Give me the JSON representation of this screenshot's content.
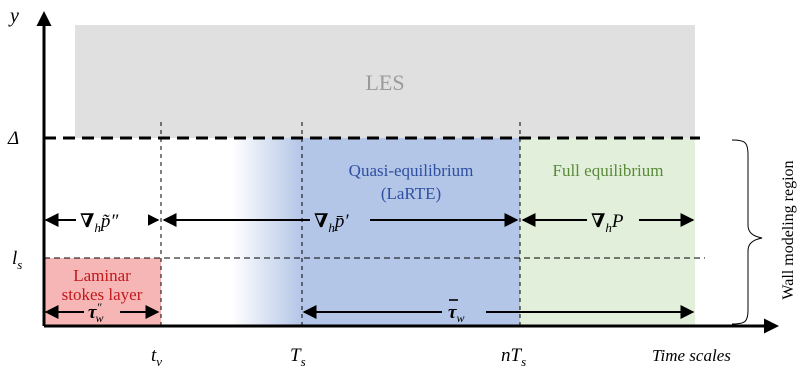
{
  "axes": {
    "y_label": "y",
    "x_label": "Time scales",
    "delta_label": "Δ",
    "ls_label": "l",
    "ls_sub": "s",
    "ticks": [
      {
        "main": "t",
        "sub": "v"
      },
      {
        "main": "T",
        "sub": "s"
      },
      {
        "main": "nT",
        "sub": "s"
      }
    ]
  },
  "regions": {
    "les": "LES",
    "laminar_line1": "Laminar",
    "laminar_line2": "stokes layer",
    "quasi_line1": "Quasi-equilibrium",
    "quasi_line2": "(LaRTE)",
    "full": "Full equilibrium",
    "wall_modeling": "Wall modeling region"
  },
  "annotations": {
    "grad_ptilde": "∇",
    "grad_pbar": "∇",
    "grad_P": "∇",
    "tau_w_pp": "τ",
    "tau_w_bar": "τ"
  },
  "colors": {
    "les": "#e0e0e0",
    "laminar": "#f7b6b6",
    "quasi": "#b3c6e7",
    "full": "#e2efda",
    "les_text": "#9a9a9a",
    "quasi_text": "#2f4fa0",
    "full_text": "#5a8a3a",
    "laminar_text": "#c0181d"
  }
}
